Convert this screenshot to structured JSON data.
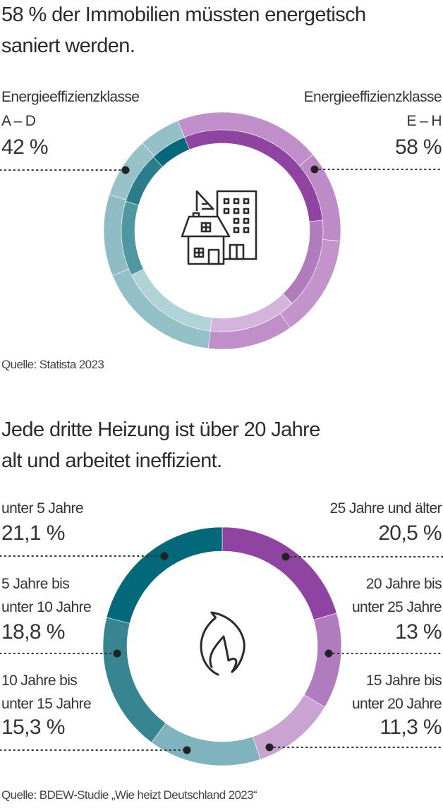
{
  "chart_data": [
    {
      "type": "pie",
      "title": "58 % der Immobilien müssten energetisch saniert werden.",
      "title_lines": [
        "58 % der Immobilien müssten energetisch",
        "saniert werden."
      ],
      "center_icon": "buildings-icon",
      "slices": [
        {
          "label_lines": [
            "Energieeffizienzklasse",
            "A – D"
          ],
          "value": 42,
          "value_label": "42 %",
          "color": "#93bfc7",
          "side": "left"
        },
        {
          "label_lines": [
            "Energieeffizienzklasse",
            "E – H"
          ],
          "value": 58,
          "value_label": "58 %",
          "color": "#c08fca",
          "side": "right"
        }
      ],
      "source": "Quelle: Statista 2023"
    },
    {
      "type": "pie",
      "title": "Jede dritte Heizung ist über 20 Jahre alt und arbeitet ineffizient.",
      "title_lines": [
        "Jede dritte Heizung ist über 20 Jahre",
        "alt und arbeitet ineffizient."
      ],
      "center_icon": "flame-icon",
      "slices": [
        {
          "label_lines": [
            "25 Jahre und älter"
          ],
          "value": 20.5,
          "value_label": "20,5 %",
          "color": "#8e44a0",
          "side": "right"
        },
        {
          "label_lines": [
            "20 Jahre bis",
            "unter 25 Jahre"
          ],
          "value": 13,
          "value_label": "13 %",
          "color": "#b07cbd",
          "side": "right"
        },
        {
          "label_lines": [
            "15 Jahre bis",
            "unter 20 Jahre"
          ],
          "value": 11.3,
          "value_label": "11,3 %",
          "color": "#c9a3d2",
          "side": "right"
        },
        {
          "label_lines": [
            "10 Jahre bis",
            "unter 15 Jahre"
          ],
          "value": 15.3,
          "value_label": "15,3 %",
          "color": "#7fb3bd",
          "side": "left"
        },
        {
          "label_lines": [
            "5 Jahre bis",
            "unter 10 Jahre"
          ],
          "value": 18.8,
          "value_label": "18,8 %",
          "color": "#378590",
          "side": "left"
        },
        {
          "label_lines": [
            "unter 5 Jahre"
          ],
          "value": 21.1,
          "value_label": "21,1 %",
          "color": "#03687a",
          "side": "left"
        }
      ],
      "source": "Quelle: BDEW-Studie „Wie heizt Deutschland 2023“"
    }
  ]
}
